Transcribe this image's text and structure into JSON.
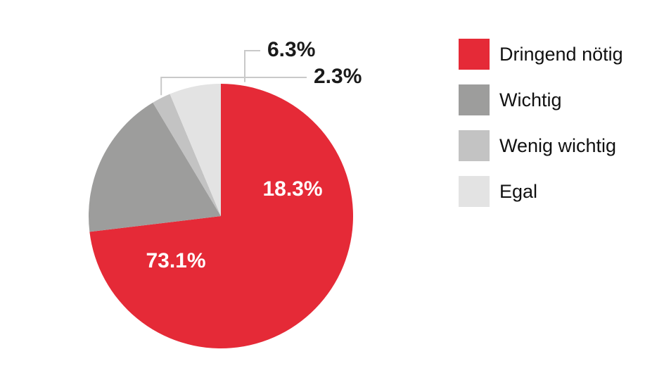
{
  "chart_data": {
    "type": "pie",
    "title": "",
    "start_angle_deg": 0,
    "direction": "clockwise",
    "legend_position": "right",
    "slices": [
      {
        "name": "Dringend nötig",
        "value": 73.1,
        "label": "73.1%",
        "color": "#e52a37",
        "label_color": "#ffffff",
        "label_placement": "inside"
      },
      {
        "name": "Wichtig",
        "value": 18.3,
        "label": "18.3%",
        "color": "#9d9d9c",
        "label_color": "#ffffff",
        "label_placement": "inside"
      },
      {
        "name": "Wenig wichtig",
        "value": 2.3,
        "label": "2.3%",
        "color": "#c3c3c3",
        "label_color": "#1a1a1a",
        "label_placement": "outside"
      },
      {
        "name": "Egal",
        "value": 6.3,
        "label": "6.3%",
        "color": "#e3e3e3",
        "label_color": "#1a1a1a",
        "label_placement": "outside"
      }
    ]
  }
}
